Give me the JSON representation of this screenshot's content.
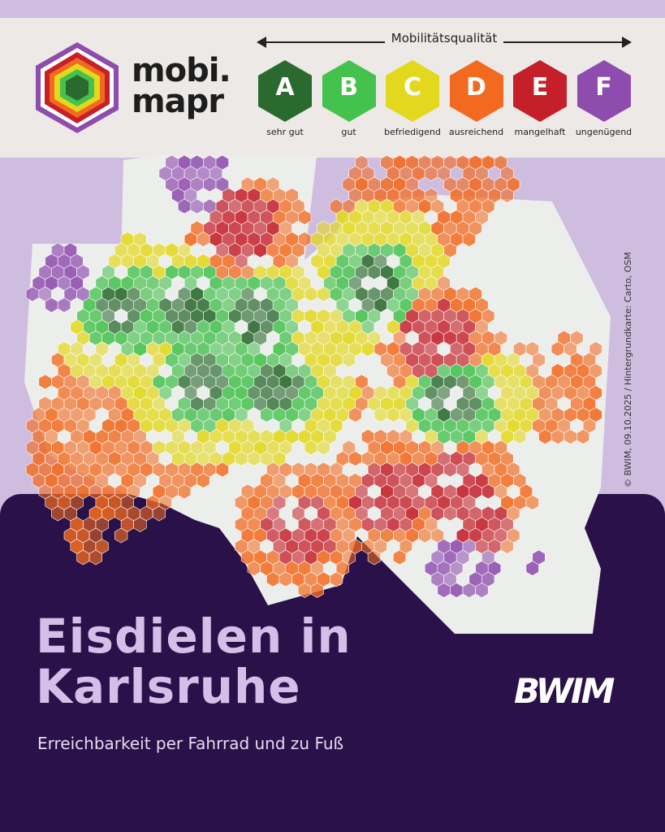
{
  "logo": {
    "line1": "mobi.",
    "line2": "mapr"
  },
  "scale": {
    "title": "Mobilitätsqualität",
    "grades": [
      {
        "letter": "A",
        "label": "sehr gut",
        "color": "#2a6a2e"
      },
      {
        "letter": "B",
        "label": "gut",
        "color": "#45c14d"
      },
      {
        "letter": "C",
        "label": "befriedigend",
        "color": "#e3d81d"
      },
      {
        "letter": "D",
        "label": "ausreichend",
        "color": "#f26a1f"
      },
      {
        "letter": "E",
        "label": "mangelhaft",
        "color": "#c5202a"
      },
      {
        "letter": "F",
        "label": "ungenügend",
        "color": "#8e4cae"
      }
    ]
  },
  "title": {
    "line1": "Eisdielen in",
    "line2": "Karlsruhe"
  },
  "subtitle": "Erreichbarkeit per Fahrrad und zu Fuß",
  "brand": "BWIM",
  "copyright": "© BWIM, 09.10.2025 / Hintergrundkarte: Carto, OSM"
}
